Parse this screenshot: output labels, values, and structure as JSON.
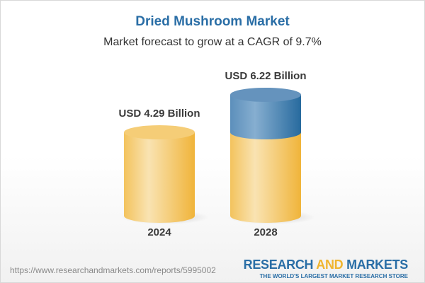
{
  "title": "Dried Mushroom Market",
  "subtitle": "Market forecast to grow at a CAGR of 9.7%",
  "chart_data": {
    "type": "bar",
    "style": "3d-cylinder",
    "categories": [
      "2024",
      "2028"
    ],
    "values": [
      4.29,
      6.22
    ],
    "data_labels": [
      "USD 4.29 Billion",
      "USD 6.22 Billion"
    ],
    "unit": "USD Billion",
    "cagr": "9.7%",
    "colors": {
      "base": "#f2c462",
      "growth": "#3f7fb0"
    }
  },
  "footer": {
    "url": "https://www.researchandmarkets.com/reports/5995002",
    "logo_part1": "RESEARCH ",
    "logo_part2": "AND",
    "logo_part3": " MARKETS",
    "tagline": "THE WORLD'S LARGEST MARKET RESEARCH STORE"
  }
}
